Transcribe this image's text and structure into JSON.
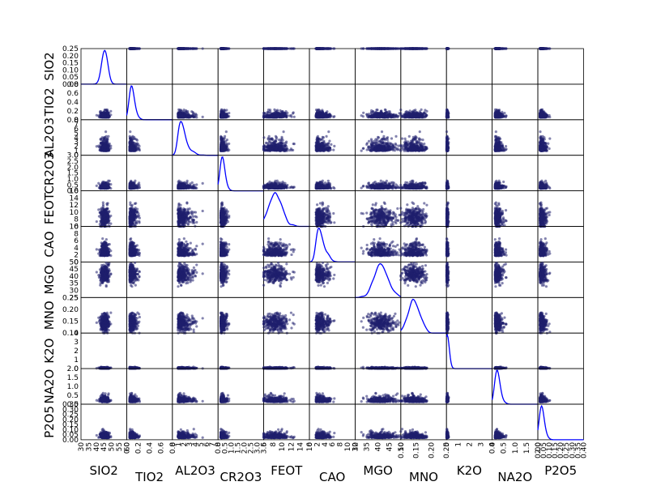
{
  "chart_data": {
    "type": "scatter_matrix",
    "variables": [
      "SIO2",
      "TIO2",
      "AL2O3",
      "CR2O3",
      "FEOT",
      "CAO",
      "MGO",
      "MNO",
      "K2O",
      "NA2O",
      "P2O5"
    ],
    "x_tick_labels": [
      [
        "30",
        "35",
        "40",
        "45",
        "50",
        "55",
        "60"
      ],
      [
        "0.0",
        "0.2",
        "0.4",
        "0.6",
        "0.8"
      ],
      [
        "0",
        "1",
        "2",
        "3",
        "4",
        "5",
        "6",
        "7",
        "8"
      ],
      [
        "0.0",
        "0.5",
        "1.0",
        "1.5",
        "2.0",
        "2.5",
        "3.0",
        "3.5"
      ],
      [
        "6",
        "8",
        "10",
        "12",
        "14",
        "16"
      ],
      [
        "0",
        "2",
        "4",
        "6",
        "8",
        "10",
        "12"
      ],
      [
        "30",
        "35",
        "40",
        "45",
        "50"
      ],
      [
        "0.10",
        "0.15",
        "0.20",
        "0.25"
      ],
      [
        "0",
        "1",
        "2",
        "3",
        "4"
      ],
      [
        "0.0",
        "0.5",
        "1.0",
        "1.5",
        "2.0"
      ],
      [
        "0.00",
        "0.05",
        "0.10",
        "0.15",
        "0.20",
        "0.25",
        "0.30",
        "0.35",
        "0.40"
      ]
    ],
    "y_tick_labels": [
      [
        "0.00",
        "0.05",
        "0.10",
        "0.15",
        "0.20",
        "0.25"
      ],
      [
        "0.0",
        "0.2",
        "0.4",
        "0.6",
        "0.8"
      ],
      [
        "0",
        "1",
        "2",
        "3",
        "4",
        "5",
        "6",
        "7",
        "8"
      ],
      [
        "0.0",
        "0.5",
        "1.0",
        "1.5",
        "2.0",
        "2.5",
        "3.0"
      ],
      [
        "6",
        "8",
        "10",
        "12",
        "14",
        "16"
      ],
      [
        "0",
        "2",
        "4",
        "6",
        "8",
        "10"
      ],
      [
        "25",
        "30",
        "35",
        "40",
        "45",
        "50"
      ],
      [
        "0.10",
        "0.15",
        "0.20",
        "0.25"
      ],
      [
        "0",
        "1",
        "2",
        "3",
        "4"
      ],
      [
        "0.0",
        "0.5",
        "1.0",
        "1.5",
        "2.0"
      ],
      [
        "0.00",
        "0.05",
        "0.10",
        "0.15",
        "0.20",
        "0.25",
        "0.30",
        "0.35"
      ]
    ],
    "x_ranges": [
      [
        30,
        60
      ],
      [
        0.0,
        0.8
      ],
      [
        0,
        8
      ],
      [
        0.0,
        3.5
      ],
      [
        6,
        16
      ],
      [
        0,
        12
      ],
      [
        30,
        50
      ],
      [
        0.1,
        0.25
      ],
      [
        0,
        4
      ],
      [
        0.0,
        2.0
      ],
      [
        0.0,
        0.4
      ]
    ],
    "y_ranges": [
      [
        0.0,
        0.25
      ],
      [
        0.0,
        0.8
      ],
      [
        0,
        8
      ],
      [
        0.0,
        3.0
      ],
      [
        6,
        16
      ],
      [
        0,
        10
      ],
      [
        25,
        50
      ],
      [
        0.1,
        0.25
      ],
      [
        0,
        4
      ],
      [
        0.0,
        2.0
      ],
      [
        0.0,
        0.35
      ]
    ],
    "variable_stats": [
      {
        "center": 45.5,
        "spread": 1.5
      },
      {
        "center": 0.08,
        "spread": 0.07
      },
      {
        "center": 1.5,
        "spread": 1.3
      },
      {
        "center": 0.3,
        "spread": 0.25
      },
      {
        "center": 8.5,
        "spread": 1.3
      },
      {
        "center": 2.5,
        "spread": 2.0
      },
      {
        "center": 41.5,
        "spread": 3.0
      },
      {
        "center": 0.145,
        "spread": 0.018
      },
      {
        "center": 0.03,
        "spread": 0.05
      },
      {
        "center": 0.2,
        "spread": 0.18
      },
      {
        "center": 0.03,
        "spread": 0.03
      }
    ],
    "diagonal": "kde",
    "point_color": "#1f1f6e",
    "point_opacity": 0.55,
    "kde_color": "#0000ff",
    "n_points": 300,
    "grid": false,
    "legend": false
  }
}
